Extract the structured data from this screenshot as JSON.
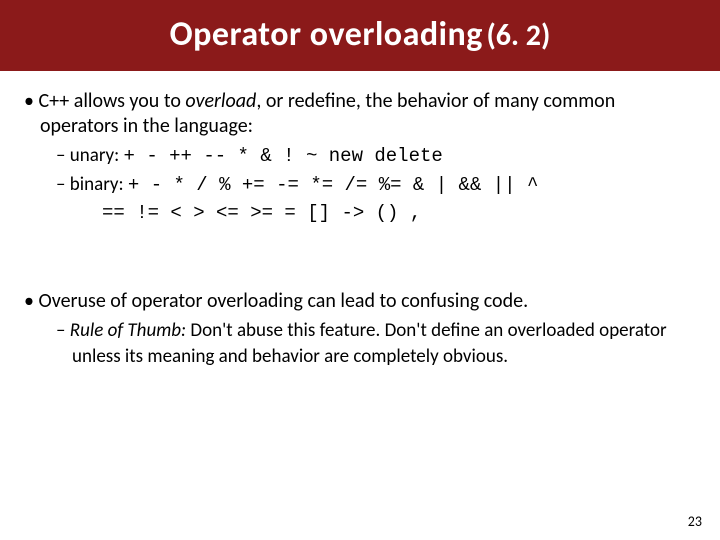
{
  "title": {
    "main": "Operator overloading",
    "section": "(6. 2)"
  },
  "block1": {
    "line1a": "C++ allows you to ",
    "line1b_italic": "overload",
    "line1c": ", or redefine, the behavior of many common operators in the language:",
    "unary_label": "unary: ",
    "unary_ops": "+ - ++ -- * & ! ~ new delete",
    "binary_label": "binary: ",
    "binary_ops1": "+ - * / % += -= *= /= %= & | && || ^",
    "binary_ops2": "== != < > <= >= = [] -> () ,"
  },
  "block2": {
    "line1": "Overuse of operator overloading can lead to confusing code.",
    "rule_label": "Rule of Thumb:",
    "rule_text": " Don't abuse this feature.  Don't define an overloaded operator unless its meaning and behavior are completely obvious."
  },
  "page_number": "23"
}
